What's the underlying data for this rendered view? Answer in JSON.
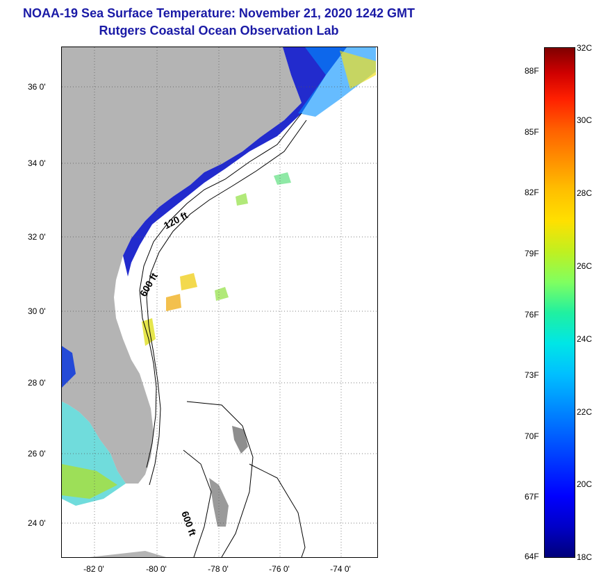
{
  "header": {
    "title": "NOAA-19 Sea Surface Temperature:  November 21, 2020 1242 GMT",
    "subtitle": "Rutgers Coastal Ocean Observation Lab"
  },
  "map": {
    "lat_labels": [
      "36 0'",
      "34 0'",
      "32 0'",
      "30 0'",
      "28 0'",
      "26 0'",
      "24 0'"
    ],
    "lon_labels": [
      "-82 0'",
      "-80 0'",
      "-78 0'",
      "-76 0'",
      "-74 0'"
    ],
    "contours": [
      "120 ft",
      "600 ft",
      "600 ft"
    ],
    "colors": {
      "land": "#b4b4b4",
      "ocean_cloud": "#ffffff",
      "cold_water": "#0a14c8"
    }
  },
  "colorbar": {
    "fahrenheit": [
      "88F",
      "85F",
      "82F",
      "79F",
      "76F",
      "73F",
      "70F",
      "67F",
      "64F"
    ],
    "celsius": [
      "32C",
      "30C",
      "28C",
      "26C",
      "24C",
      "22C",
      "20C",
      "18C"
    ]
  }
}
